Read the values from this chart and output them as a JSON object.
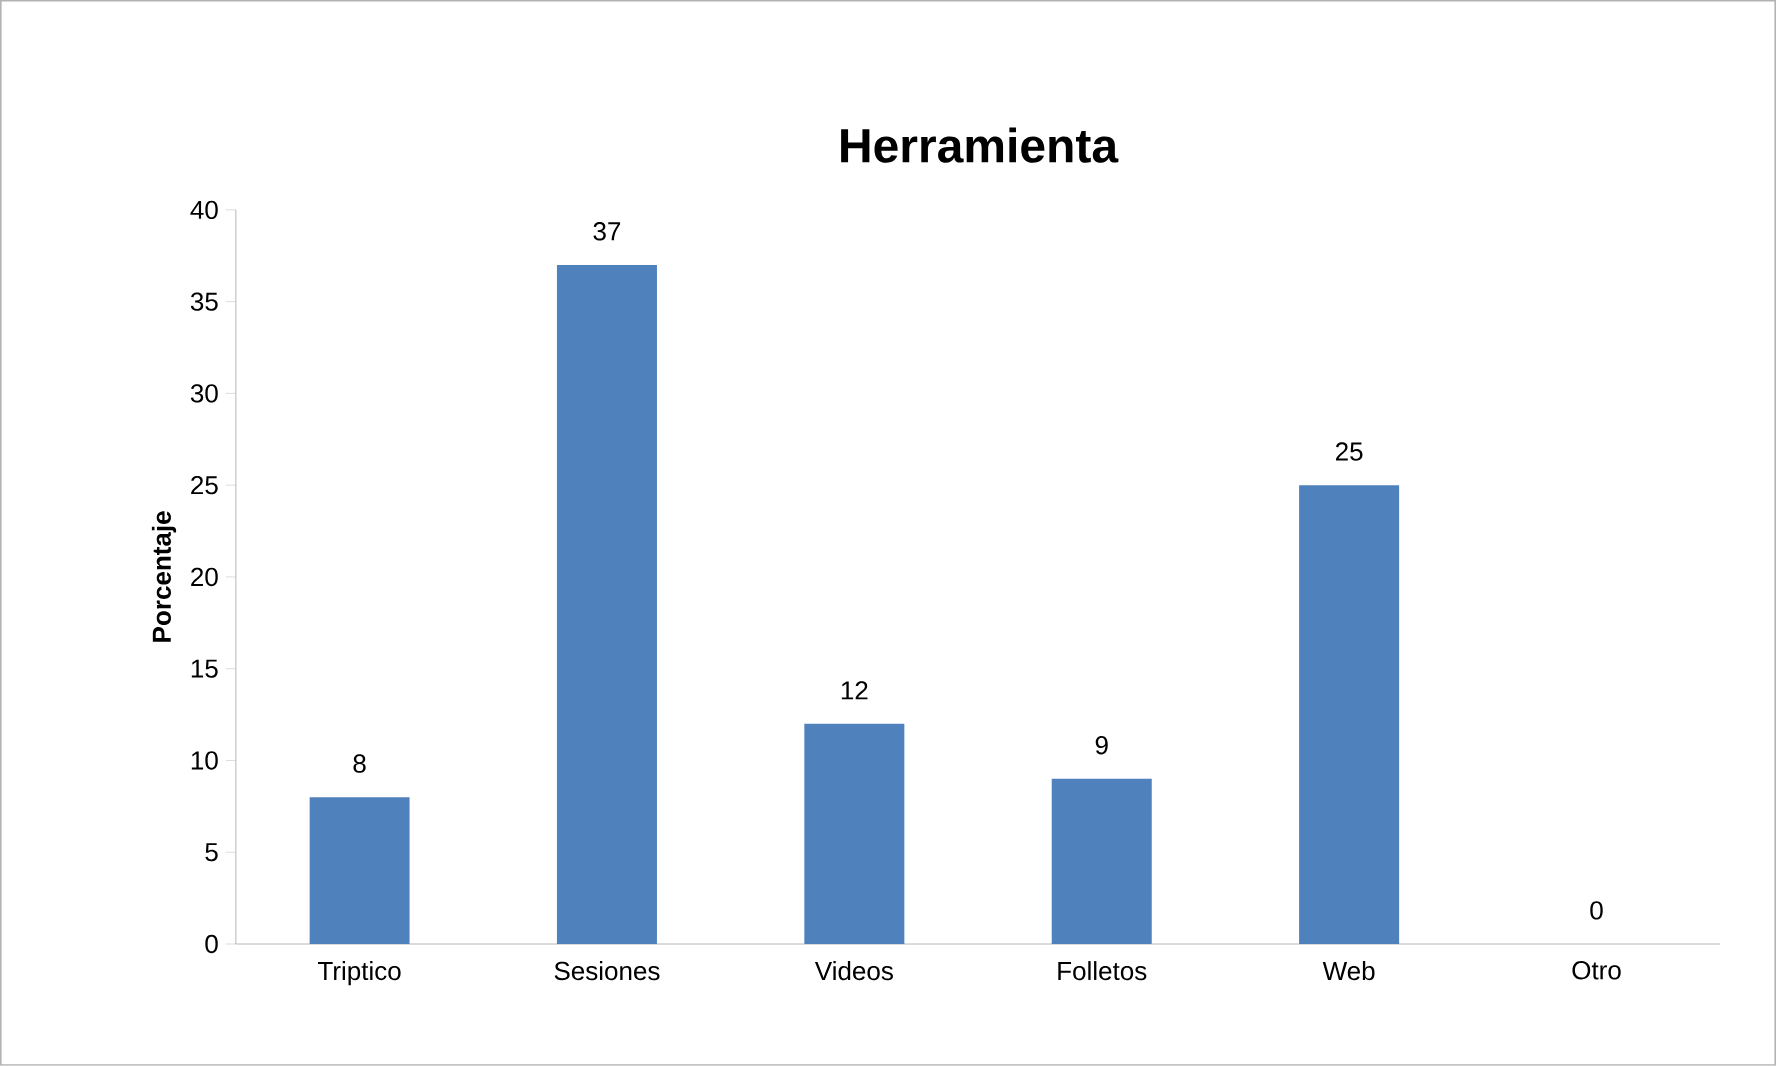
{
  "chart_data": {
    "type": "bar",
    "title": "Herramienta",
    "ylabel": "Porcentaje",
    "categories": [
      "Triptico",
      "Sesiones",
      "Videos",
      "Folletos",
      "Web",
      "Otro"
    ],
    "values": [
      8,
      37,
      12,
      9,
      25,
      0
    ],
    "color": "#4f81bd",
    "ylim": [
      0,
      40
    ],
    "yticks": [
      0,
      5,
      10,
      15,
      20,
      25,
      30,
      35,
      40
    ],
    "data_labels": true
  }
}
